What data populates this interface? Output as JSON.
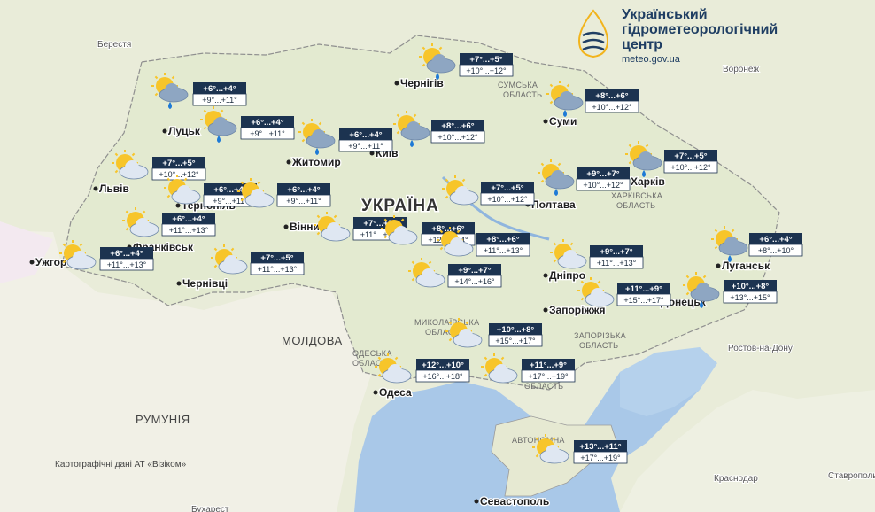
{
  "header": {
    "title": [
      "Український",
      "гідрометеорологічний",
      "центр"
    ],
    "url": "meteo.gov.ua"
  },
  "forecasts": [
    {
      "night": "+6°...+4°",
      "day": "+9°...+11°"
    },
    {
      "night": "+6°...+4°",
      "day": "+9°...+11°"
    },
    {
      "night": "+6°...+4°",
      "day": "+9°...+11°"
    },
    {
      "night": "+7°...+5°",
      "day": "+10°...+12°"
    },
    {
      "night": "+8°...+6°",
      "day": "+10°...+12°"
    },
    {
      "night": "+8°...+6°",
      "day": "+10°...+12°"
    },
    {
      "night": "+7°...+5°",
      "day": "+10°...+12°"
    },
    {
      "night": "+7°...+5°",
      "day": "+10°...+12°"
    },
    {
      "night": "+6°...+4°",
      "day": "+9°...+11°"
    },
    {
      "night": "+6°...+4°",
      "day": "+9°...+11°"
    },
    {
      "night": "+6°...+4°",
      "day": "+11°...+13°"
    },
    {
      "night": "+6°...+4°",
      "day": "+11°...+13°"
    },
    {
      "night": "+7°...+5°",
      "day": "+11°...+13°"
    },
    {
      "night": "+7°...+5°",
      "day": "+11°...+13°"
    },
    {
      "night": "+7°...+5°",
      "day": "+10°...+12°"
    },
    {
      "night": "+9°...+7°",
      "day": "+10°...+12°"
    },
    {
      "night": "+8°...+6°",
      "day": "+12°...+14°"
    },
    {
      "night": "+8°...+6°",
      "day": "+11°...+13°"
    },
    {
      "night": "+9°...+7°",
      "day": "+14°...+16°"
    },
    {
      "night": "+9°...+7°",
      "day": "+11°...+13°"
    },
    {
      "night": "+11°...+9°",
      "day": "+15°...+17°"
    },
    {
      "night": "+10°...+8°",
      "day": "+13°...+15°"
    },
    {
      "night": "+6°...+4°",
      "day": "+8°...+10°"
    },
    {
      "night": "+10°...+8°",
      "day": "+15°...+17°"
    },
    {
      "night": "+12°...+10°",
      "day": "+16°...+18°"
    },
    {
      "night": "+11°...+9°",
      "day": "+17°...+19°"
    },
    {
      "night": "+13°...+11°",
      "day": "+17°...+19°"
    }
  ],
  "cities": [
    "Луцьк",
    "Житомир",
    "Київ",
    "Чернігів",
    "Суми",
    "Харків",
    "Львів",
    "Тернопіль",
    "Вінниця",
    "Полтава",
    "Дніпро",
    "Запоріжжя",
    "Донецьк",
    "Луганськ",
    "Ужгород",
    "Франківськ",
    "Чернівці",
    "Одеса",
    "Севастополь"
  ],
  "foreign_cities": [
    "Берестя",
    "Воронеж",
    "Ростов-на-Дону",
    "Краснодар",
    "Ставрополь",
    "Бухарест"
  ],
  "countries": [
    "УКРАЇНА",
    "МОЛДОВА",
    "РУМУНІЯ"
  ],
  "regions": [
    "СУМСЬКА",
    "ОБЛАСТЬ",
    "ХАРКІВСЬКА",
    "ОБЛАСТЬ",
    "ЗАПОРІЗЬКА",
    "ОБЛАСТЬ",
    "ОДЕСЬКА",
    "ОБЛАСТЬ",
    "МИКОЛАЇВСЬКА",
    "ОБЛАСТЬ",
    "АВТОНОМНА",
    "ОБЛАСТЬ"
  ],
  "credit": "Картографічні дані АТ «Візіком»"
}
